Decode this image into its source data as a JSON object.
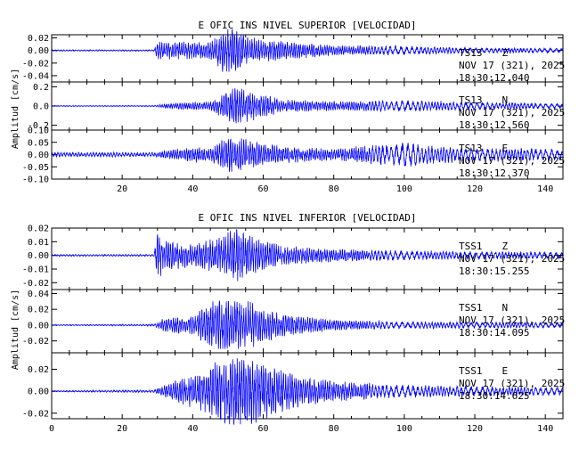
{
  "chart_data": [
    {
      "type": "line",
      "title": "E OFIC INS NIVEL SUPERIOR [VELOCIDAD]",
      "ylabel": "Amplitud [cm/s]",
      "xlabel": "",
      "xlim": [
        0,
        145
      ],
      "x_ticks": [
        "20",
        "40",
        "60",
        "80",
        "100",
        "120",
        "140"
      ],
      "x_tick_values": [
        20,
        40,
        60,
        80,
        100,
        120,
        140
      ],
      "line_color": "#0000ff",
      "traces": [
        {
          "station": "TS13",
          "component": "Z",
          "date": "NOV 17 (321), 2025",
          "time": "18:30:12.040",
          "ylim": [
            -0.05,
            0.025
          ],
          "y_ticks": [
            "0.02",
            "0.00",
            "-0.02",
            "-0.04"
          ],
          "y_tick_values": [
            0.02,
            0.0,
            -0.02,
            -0.04
          ],
          "onset_s": 29.5,
          "peak_abs": 0.035,
          "envelope_s": [
            0,
            29,
            30,
            45,
            48,
            50,
            55,
            60,
            80,
            100,
            120,
            145
          ],
          "envelope_amp": [
            0.001,
            0.001,
            0.012,
            0.012,
            0.03,
            0.035,
            0.02,
            0.015,
            0.007,
            0.006,
            0.004,
            0.003
          ]
        },
        {
          "station": "TS13",
          "component": "N",
          "date": "NOV 17 (321), 2025",
          "time": "18:30:12.560",
          "ylim": [
            -0.25,
            0.25
          ],
          "y_ticks": [
            "0.2",
            "0.0",
            "-0.2"
          ],
          "y_tick_values": [
            0.2,
            0.0,
            -0.2
          ],
          "onset_s": 30,
          "peak_abs": 0.18,
          "envelope_s": [
            0,
            29,
            35,
            45,
            50,
            52,
            57,
            65,
            80,
            100,
            120,
            145
          ],
          "envelope_amp": [
            0.004,
            0.005,
            0.03,
            0.04,
            0.14,
            0.18,
            0.13,
            0.06,
            0.04,
            0.05,
            0.04,
            0.02
          ]
        },
        {
          "station": "TS13",
          "component": "E",
          "date": "NOV 17 (321), 2025",
          "time": "18:30:12.370",
          "ylim": [
            -0.1,
            0.1
          ],
          "y_ticks": [
            "0.10",
            "0.05",
            "0.00",
            "-0.05",
            "-0.10"
          ],
          "y_tick_values": [
            0.1,
            0.05,
            0.0,
            -0.05,
            -0.1
          ],
          "onset_s": 30,
          "peak_abs": 0.07,
          "envelope_s": [
            0,
            29,
            35,
            40,
            45,
            50,
            57,
            65,
            80,
            95,
            100,
            110,
            120,
            145
          ],
          "envelope_amp": [
            0.008,
            0.008,
            0.02,
            0.03,
            0.02,
            0.07,
            0.05,
            0.03,
            0.02,
            0.04,
            0.045,
            0.03,
            0.025,
            0.02
          ]
        }
      ]
    },
    {
      "type": "line",
      "title": "E OFIC INS NIVEL INFERIOR [VELOCIDAD]",
      "ylabel": "Amplitud [cm/s]",
      "xlabel": "",
      "xlim": [
        0,
        145
      ],
      "x_ticks": [
        "0",
        "20",
        "40",
        "60",
        "80",
        "100",
        "120",
        "140"
      ],
      "x_tick_values": [
        0,
        20,
        40,
        60,
        80,
        100,
        120,
        140
      ],
      "line_color": "#0000ff",
      "traces": [
        {
          "station": "TSS1",
          "component": "Z",
          "date": "NOV 17 (321), 2025",
          "time": "18:30:15.255",
          "ylim": [
            -0.025,
            0.02
          ],
          "y_ticks": [
            "0.02",
            "0.01",
            "0.00",
            "-0.01",
            "-0.02"
          ],
          "y_tick_values": [
            0.02,
            0.01,
            0.0,
            -0.01,
            -0.02
          ],
          "onset_s": 29.5,
          "peak_abs": 0.02,
          "envelope_s": [
            0,
            29,
            30,
            32,
            40,
            48,
            52,
            57,
            65,
            80,
            100,
            145
          ],
          "envelope_amp": [
            0.0006,
            0.0006,
            0.016,
            0.01,
            0.007,
            0.012,
            0.018,
            0.012,
            0.006,
            0.004,
            0.003,
            0.002
          ]
        },
        {
          "station": "TSS1",
          "component": "N",
          "date": "NOV 17 (321), 2025",
          "time": "18:30:14.095",
          "ylim": [
            -0.035,
            0.045
          ],
          "y_ticks": [
            "0.04",
            "0.02",
            "0.00",
            "-0.02"
          ],
          "y_tick_values": [
            0.04,
            0.02,
            0.0,
            -0.02
          ],
          "onset_s": 30,
          "peak_abs": 0.03,
          "envelope_s": [
            0,
            29,
            32,
            40,
            47,
            50,
            55,
            60,
            70,
            80,
            100,
            145
          ],
          "envelope_amp": [
            0.0005,
            0.001,
            0.008,
            0.01,
            0.03,
            0.032,
            0.028,
            0.018,
            0.01,
            0.006,
            0.004,
            0.003
          ]
        },
        {
          "station": "TSS1",
          "component": "E",
          "date": "NOV 17 (321), 2025",
          "time": "18:30:14.625",
          "ylim": [
            -0.025,
            0.035
          ],
          "y_ticks": [
            "0.02",
            "0.00",
            "-0.02"
          ],
          "y_tick_values": [
            0.02,
            0.0,
            -0.02
          ],
          "onset_s": 30,
          "peak_abs": 0.03,
          "envelope_s": [
            0,
            29,
            35,
            42,
            48,
            52,
            57,
            62,
            70,
            80,
            100,
            145
          ],
          "envelope_amp": [
            0.0005,
            0.001,
            0.008,
            0.015,
            0.025,
            0.03,
            0.026,
            0.02,
            0.012,
            0.008,
            0.005,
            0.003
          ]
        }
      ]
    }
  ]
}
